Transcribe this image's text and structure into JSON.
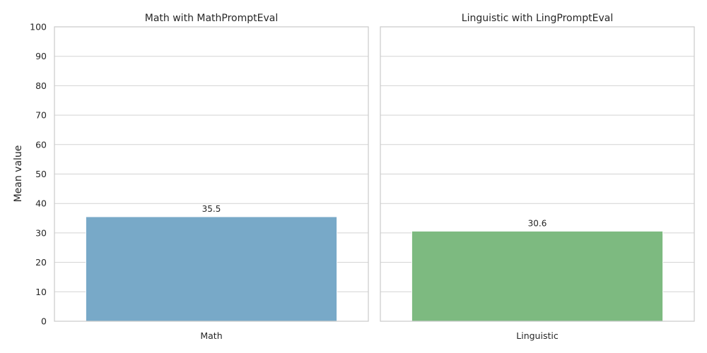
{
  "chart_data": [
    {
      "type": "bar",
      "title": "Math with MathPromptEval",
      "categories": [
        "Math"
      ],
      "values": [
        35.5
      ],
      "value_labels": [
        "35.5"
      ],
      "xlabel": "",
      "ylabel": "Mean value",
      "ylim": [
        0,
        100
      ],
      "yticks": [
        0,
        10,
        20,
        30,
        40,
        50,
        60,
        70,
        80,
        90,
        100
      ],
      "grid": true,
      "color": "#78a9c8"
    },
    {
      "type": "bar",
      "title": "Linguistic with LingPromptEval",
      "categories": [
        "Linguistic"
      ],
      "values": [
        30.6
      ],
      "value_labels": [
        "30.6"
      ],
      "xlabel": "",
      "ylabel": "",
      "ylim": [
        0,
        100
      ],
      "yticks": [
        0,
        10,
        20,
        30,
        40,
        50,
        60,
        70,
        80,
        90,
        100
      ],
      "grid": true,
      "color": "#7dba80"
    }
  ]
}
